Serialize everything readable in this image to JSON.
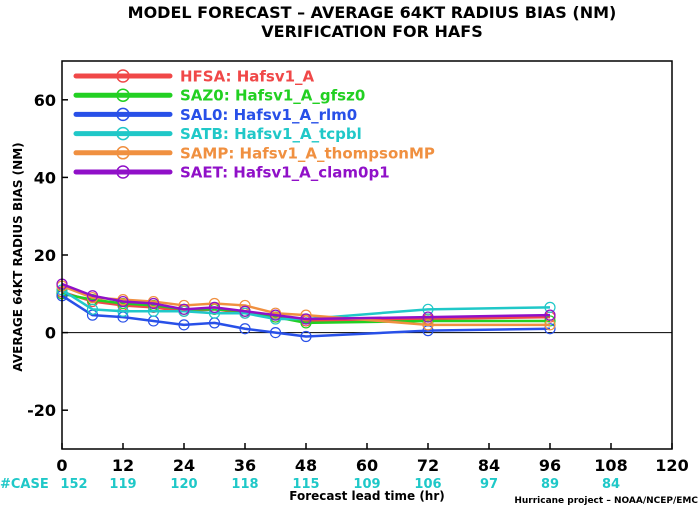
{
  "chart_data": {
    "type": "line",
    "title": "MODEL FORECAST – AVERAGE 64KT RADIUS BIAS (NM)",
    "subtitle": "VERIFICATION FOR HAFS",
    "xlabel": "Forecast lead time (hr)",
    "ylabel": "AVERAGE 64KT RADIUS BIAS (NM)",
    "xlim": [
      0,
      120
    ],
    "ylim": [
      -30,
      70
    ],
    "xticks": [
      0,
      12,
      24,
      36,
      48,
      60,
      72,
      84,
      96,
      108,
      120
    ],
    "yticks": [
      -20,
      0,
      20,
      40,
      60
    ],
    "zero_line": true,
    "legend_position": "top-left",
    "cases_label": "#CASE",
    "cases_color": "#1fc8c8",
    "cases": [
      {
        "x": 0,
        "n": "152"
      },
      {
        "x": 12,
        "n": "119"
      },
      {
        "x": 24,
        "n": "120"
      },
      {
        "x": 36,
        "n": "118"
      },
      {
        "x": 48,
        "n": "115"
      },
      {
        "x": 60,
        "n": "109"
      },
      {
        "x": 72,
        "n": "106"
      },
      {
        "x": 84,
        "n": "97"
      },
      {
        "x": 96,
        "n": "89"
      },
      {
        "x": 108,
        "n": "84"
      }
    ],
    "credit": "Hurricane project – NOAA/NCEP/EMC",
    "x": [
      0,
      6,
      12,
      18,
      24,
      30,
      36,
      42,
      48,
      72,
      96
    ],
    "series": [
      {
        "name": "HFSA:  Hafsv1_A",
        "color": "#f04848",
        "values": [
          10.5,
          8.0,
          7.0,
          6.5,
          5.5,
          6.0,
          5.0,
          4.0,
          3.0,
          3.5,
          4.0
        ]
      },
      {
        "name": "SAZ0:  Hafsv1_A_gfsz0",
        "color": "#22d022",
        "values": [
          10.0,
          8.5,
          7.5,
          7.0,
          6.0,
          6.0,
          5.5,
          4.0,
          2.5,
          3.0,
          3.0
        ]
      },
      {
        "name": "SAL0:  Hafsv1_A_rlm0",
        "color": "#2850e8",
        "values": [
          9.5,
          4.5,
          4.0,
          3.0,
          2.0,
          2.5,
          1.0,
          0.0,
          -1.0,
          0.5,
          1.0
        ]
      },
      {
        "name": "SATB:  Hafsv1_A_tcpbl",
        "color": "#20c8c8",
        "values": [
          11.0,
          6.0,
          5.5,
          5.5,
          5.5,
          5.0,
          5.0,
          3.5,
          3.5,
          6.0,
          6.5
        ]
      },
      {
        "name": "SAMP:  Hafsv1_A_thompsonMP",
        "color": "#f09040",
        "values": [
          12.0,
          9.0,
          8.5,
          8.0,
          7.0,
          7.5,
          7.0,
          5.0,
          4.5,
          2.0,
          2.0
        ]
      },
      {
        "name": "SAET:  Hafsv1_A_clam0p1",
        "color": "#9010c8",
        "values": [
          12.5,
          9.5,
          8.0,
          7.5,
          6.0,
          6.5,
          5.5,
          4.5,
          3.5,
          4.0,
          4.5
        ]
      }
    ]
  }
}
